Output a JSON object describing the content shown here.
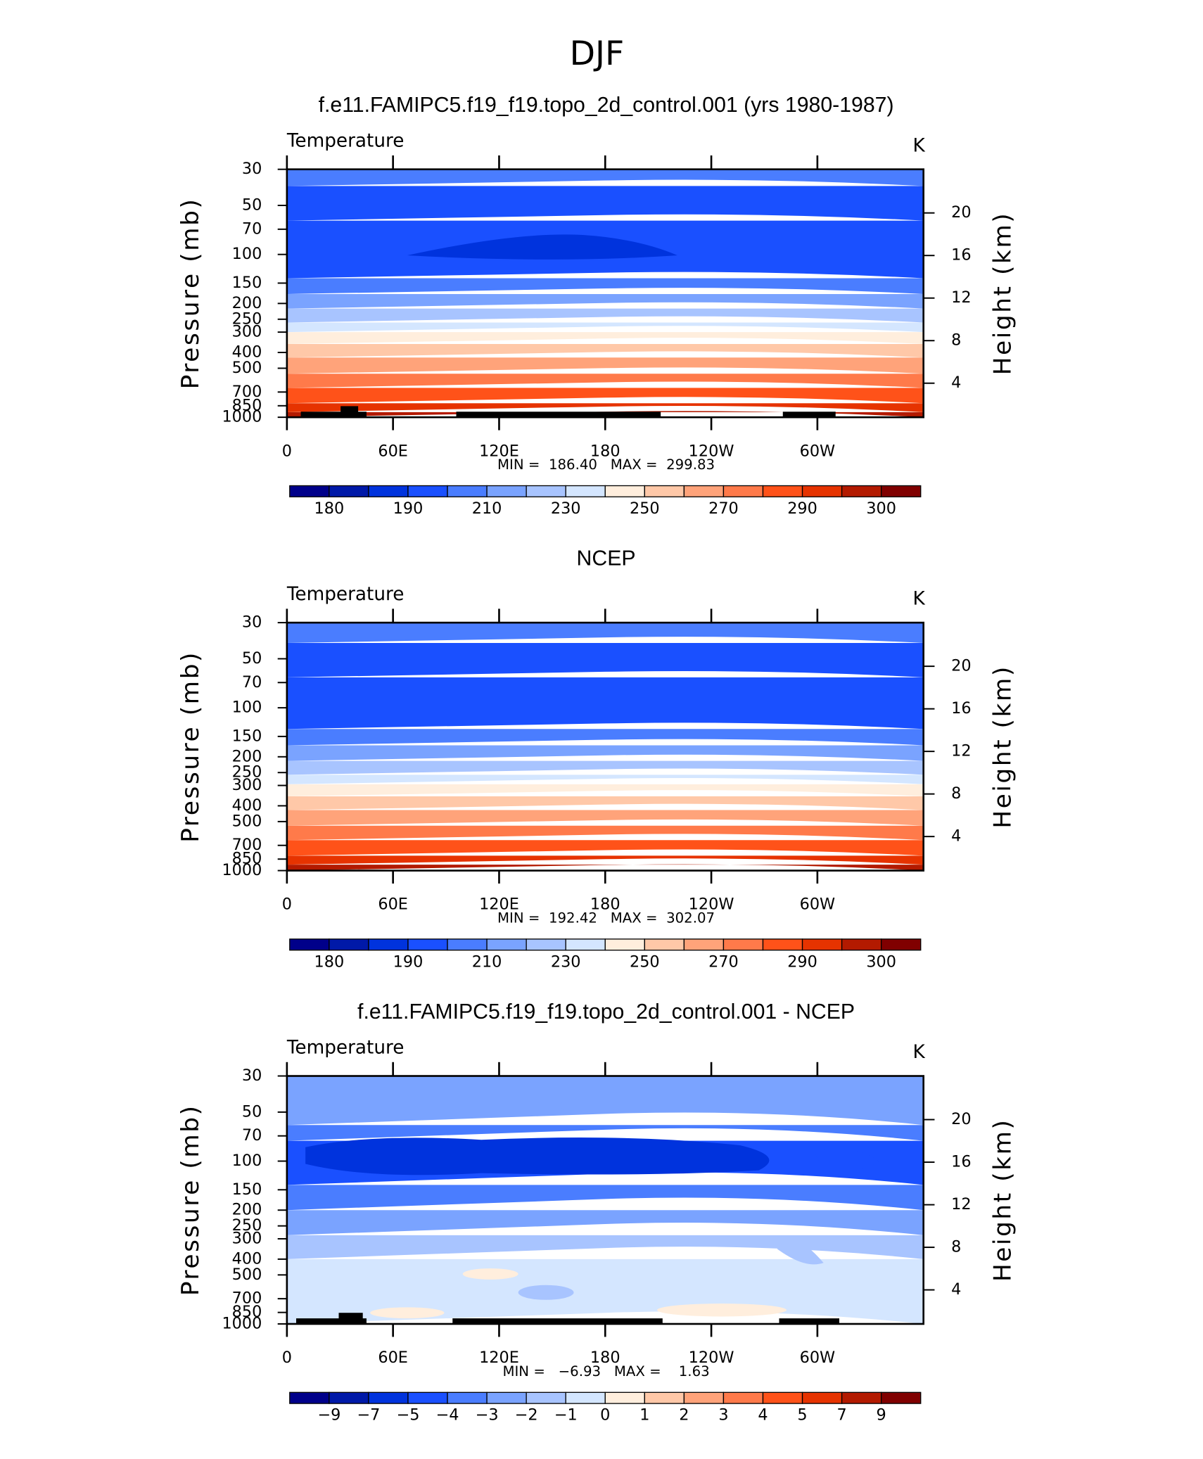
{
  "title": "DJF",
  "chart_data": [
    {
      "type": "contour",
      "title": "f.e11.FAMIPC5.f19_f19.topo_2d_control.001 (yrs 1980-1987)",
      "subtitle": "Temperature",
      "units": "K",
      "ylabel": "Pressure (mb)",
      "y2label": "Height (km)",
      "y_log": true,
      "ylim": [
        1000,
        30
      ],
      "yticks": [
        30,
        50,
        70,
        100,
        150,
        200,
        250,
        300,
        400,
        500,
        700,
        850,
        1000
      ],
      "y2lim": [
        0.8,
        24.1
      ],
      "y2ticks": [
        4,
        8,
        12,
        16,
        20
      ],
      "xlim": [
        0,
        360
      ],
      "xticks": [
        0,
        {
          "value": 60,
          "label": "60E"
        },
        {
          "value": 120,
          "label": "120E"
        },
        180,
        {
          "value": 240,
          "label": "120W"
        },
        {
          "value": 300,
          "label": "60W"
        }
      ],
      "stats": "MIN =  186.40   MAX =  299.83",
      "colorbar": {
        "colors": [
          "#00008a",
          "#0019a8",
          "#0033dd",
          "#1a50ff",
          "#4a7dff",
          "#7aa3ff",
          "#a8c4ff",
          "#d4e6ff",
          "#ffeedd",
          "#ffc8a8",
          "#ffa37a",
          "#ff7a4a",
          "#ff5219",
          "#e63300",
          "#b31a00",
          "#800000"
        ],
        "levels": [
          180,
          null,
          190,
          null,
          210,
          null,
          230,
          null,
          250,
          null,
          270,
          null,
          290,
          null,
          300
        ]
      }
    },
    {
      "type": "contour",
      "title": "NCEP",
      "subtitle": "Temperature",
      "units": "K",
      "ylabel": "Pressure (mb)",
      "y2label": "Height (km)",
      "y_log": true,
      "ylim": [
        1000,
        30
      ],
      "yticks": [
        30,
        50,
        70,
        100,
        150,
        200,
        250,
        300,
        400,
        500,
        700,
        850,
        1000
      ],
      "y2lim": [
        0.8,
        24.1
      ],
      "y2ticks": [
        4,
        8,
        12,
        16,
        20
      ],
      "xlim": [
        0,
        360
      ],
      "xticks": [
        0,
        {
          "value": 60,
          "label": "60E"
        },
        {
          "value": 120,
          "label": "120E"
        },
        180,
        {
          "value": 240,
          "label": "120W"
        },
        {
          "value": 300,
          "label": "60W"
        }
      ],
      "stats": "MIN =  192.42   MAX =  302.07",
      "colorbar": {
        "colors": [
          "#00008a",
          "#0019a8",
          "#0033dd",
          "#1a50ff",
          "#4a7dff",
          "#7aa3ff",
          "#a8c4ff",
          "#d4e6ff",
          "#ffeedd",
          "#ffc8a8",
          "#ffa37a",
          "#ff7a4a",
          "#ff5219",
          "#e63300",
          "#b31a00",
          "#800000"
        ],
        "levels": [
          180,
          null,
          190,
          null,
          210,
          null,
          230,
          null,
          250,
          null,
          270,
          null,
          290,
          null,
          300
        ]
      }
    },
    {
      "type": "contour",
      "title": "f.e11.FAMIPC5.f19_f19.topo_2d_control.001 - NCEP",
      "subtitle": "Temperature",
      "units": "K",
      "ylabel": "Pressure (mb)",
      "y2label": "Height (km)",
      "y_log": true,
      "ylim": [
        1000,
        30
      ],
      "yticks": [
        30,
        50,
        70,
        100,
        150,
        200,
        250,
        300,
        400,
        500,
        700,
        850,
        1000
      ],
      "y2lim": [
        0.8,
        24.1
      ],
      "y2ticks": [
        4,
        8,
        12,
        16,
        20
      ],
      "xlim": [
        0,
        360
      ],
      "xticks": [
        0,
        {
          "value": 60,
          "label": "60E"
        },
        {
          "value": 120,
          "label": "120E"
        },
        180,
        {
          "value": 240,
          "label": "120W"
        },
        {
          "value": 300,
          "label": "60W"
        }
      ],
      "stats": "MIN =   −6.93   MAX =    1.63",
      "colorbar": {
        "colors": [
          "#00008a",
          "#0019a8",
          "#0033dd",
          "#1a50ff",
          "#4a7dff",
          "#7aa3ff",
          "#a8c4ff",
          "#d4e6ff",
          "#ffeedd",
          "#ffc8a8",
          "#ffa37a",
          "#ff7a4a",
          "#ff5219",
          "#e63300",
          "#b31a00",
          "#800000"
        ],
        "levels": [
          {
            "value": -9,
            "label": "−9"
          },
          {
            "value": -7,
            "label": "−7"
          },
          {
            "value": -5,
            "label": "−5"
          },
          {
            "value": -4,
            "label": "−4"
          },
          {
            "value": -3,
            "label": "−3"
          },
          {
            "value": -2,
            "label": "−2"
          },
          {
            "value": -1,
            "label": "−1"
          },
          0,
          1,
          2,
          3,
          4,
          5,
          7,
          9
        ]
      }
    }
  ]
}
